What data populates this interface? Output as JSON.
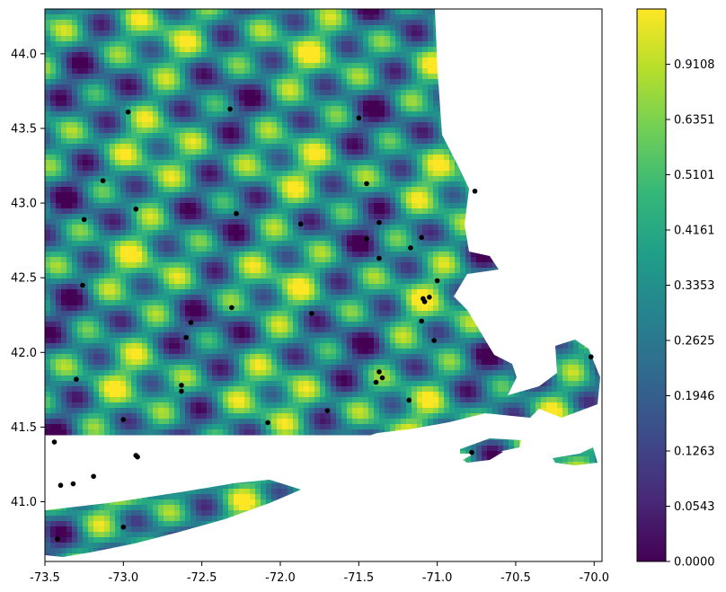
{
  "chart_data": {
    "type": "scatter",
    "subtype": "geographic-heatmap",
    "title": "",
    "xlabel": "",
    "ylabel": "",
    "xlim": [
      -73.5,
      -69.95
    ],
    "ylim": [
      40.6,
      44.3
    ],
    "x_ticks": [
      "-73.5",
      "-73.0",
      "-72.5",
      "-72.0",
      "-71.5",
      "-71.0",
      "-70.5",
      "-70.0"
    ],
    "x_tick_values": [
      -73.5,
      -73.0,
      -72.5,
      -72.0,
      -71.5,
      -71.0,
      -70.5,
      -70.0
    ],
    "y_ticks": [
      "41.0",
      "41.5",
      "42.0",
      "42.5",
      "43.0",
      "43.5",
      "44.0"
    ],
    "y_tick_values": [
      41.0,
      41.5,
      42.0,
      42.5,
      43.0,
      43.5,
      44.0
    ],
    "grid": false,
    "colormap": "viridis",
    "colormap_stops": [
      "#440154",
      "#482878",
      "#3e4a89",
      "#31688e",
      "#26828e",
      "#1f9e89",
      "#35b779",
      "#6ece58",
      "#b5de2b",
      "#fde725"
    ],
    "colorbar": {
      "tick_labels": [
        "0.0000",
        "0.0543",
        "0.1263",
        "0.1946",
        "0.2625",
        "0.3353",
        "0.4161",
        "0.5101",
        "0.6351",
        "0.9108"
      ],
      "tick_fractions": [
        0.0,
        0.1,
        0.2,
        0.3,
        0.4,
        0.5,
        0.6,
        0.7,
        0.8,
        0.9
      ],
      "range": [
        0.0,
        1.0
      ]
    },
    "points": [
      {
        "x": -72.97,
        "y": 43.61
      },
      {
        "x": -72.32,
        "y": 43.63
      },
      {
        "x": -71.5,
        "y": 43.57
      },
      {
        "x": -73.13,
        "y": 43.15
      },
      {
        "x": -72.92,
        "y": 42.96
      },
      {
        "x": -72.28,
        "y": 42.93
      },
      {
        "x": -71.45,
        "y": 43.13
      },
      {
        "x": -70.76,
        "y": 43.08
      },
      {
        "x": -73.25,
        "y": 42.89
      },
      {
        "x": -71.87,
        "y": 42.86
      },
      {
        "x": -71.37,
        "y": 42.87
      },
      {
        "x": -71.45,
        "y": 42.76
      },
      {
        "x": -71.17,
        "y": 42.7
      },
      {
        "x": -71.1,
        "y": 42.77
      },
      {
        "x": -71.37,
        "y": 42.63
      },
      {
        "x": -73.26,
        "y": 42.45
      },
      {
        "x": -71.0,
        "y": 42.48
      },
      {
        "x": -71.05,
        "y": 42.37
      },
      {
        "x": -71.08,
        "y": 42.34
      },
      {
        "x": -71.09,
        "y": 42.36
      },
      {
        "x": -72.31,
        "y": 42.3
      },
      {
        "x": -71.8,
        "y": 42.26
      },
      {
        "x": -72.57,
        "y": 42.2
      },
      {
        "x": -71.1,
        "y": 42.21
      },
      {
        "x": -72.6,
        "y": 42.1
      },
      {
        "x": -71.02,
        "y": 42.08
      },
      {
        "x": -70.02,
        "y": 41.97
      },
      {
        "x": -71.37,
        "y": 41.87
      },
      {
        "x": -71.35,
        "y": 41.83
      },
      {
        "x": -71.39,
        "y": 41.8
      },
      {
        "x": -73.3,
        "y": 41.82
      },
      {
        "x": -72.63,
        "y": 41.78
      },
      {
        "x": -72.63,
        "y": 41.74
      },
      {
        "x": -71.18,
        "y": 41.68
      },
      {
        "x": -71.7,
        "y": 41.61
      },
      {
        "x": -73.0,
        "y": 41.55
      },
      {
        "x": -72.08,
        "y": 41.53
      },
      {
        "x": -73.44,
        "y": 41.4
      },
      {
        "x": -72.92,
        "y": 41.31
      },
      {
        "x": -72.91,
        "y": 41.3
      },
      {
        "x": -70.78,
        "y": 41.33
      },
      {
        "x": -73.19,
        "y": 41.17
      },
      {
        "x": -73.4,
        "y": 41.11
      },
      {
        "x": -73.32,
        "y": 41.12
      },
      {
        "x": -73.0,
        "y": 40.83
      },
      {
        "x": -73.42,
        "y": 40.75
      }
    ]
  }
}
